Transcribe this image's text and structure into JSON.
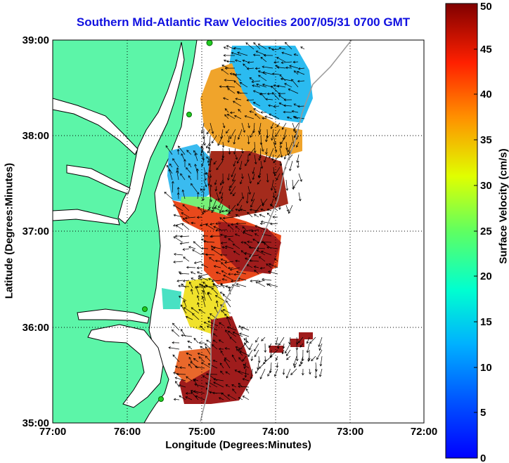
{
  "title": "Southern Mid-Atlantic Raw Velocities 2007/05/31 0700 GMT",
  "xlabel": "Longitude (Degrees:Minutes)",
  "ylabel": "Latitude (Degrees:Minutes)",
  "colorbar": {
    "label": "Surface Velocity (cm/s)",
    "min": 0,
    "max": 50,
    "ticks": [
      "0",
      "5",
      "10",
      "15",
      "20",
      "25",
      "30",
      "35",
      "40",
      "45",
      "50"
    ],
    "colormap": "jet"
  },
  "map": {
    "lon_ticks": [
      "77:00",
      "76:00",
      "75:00",
      "74:00",
      "73:00",
      "72:00"
    ],
    "lat_ticks": [
      "39:00",
      "38:00",
      "37:00",
      "36:00",
      "35:00"
    ],
    "lon_range": [
      -77,
      -72
    ],
    "lat_range": [
      35,
      39
    ],
    "grid": "dotted",
    "land_color": "#5cf5a8",
    "coastline_color": "#000000",
    "shelf_contour_color": "#999999",
    "station_marker_color": "#22cc22"
  }
}
